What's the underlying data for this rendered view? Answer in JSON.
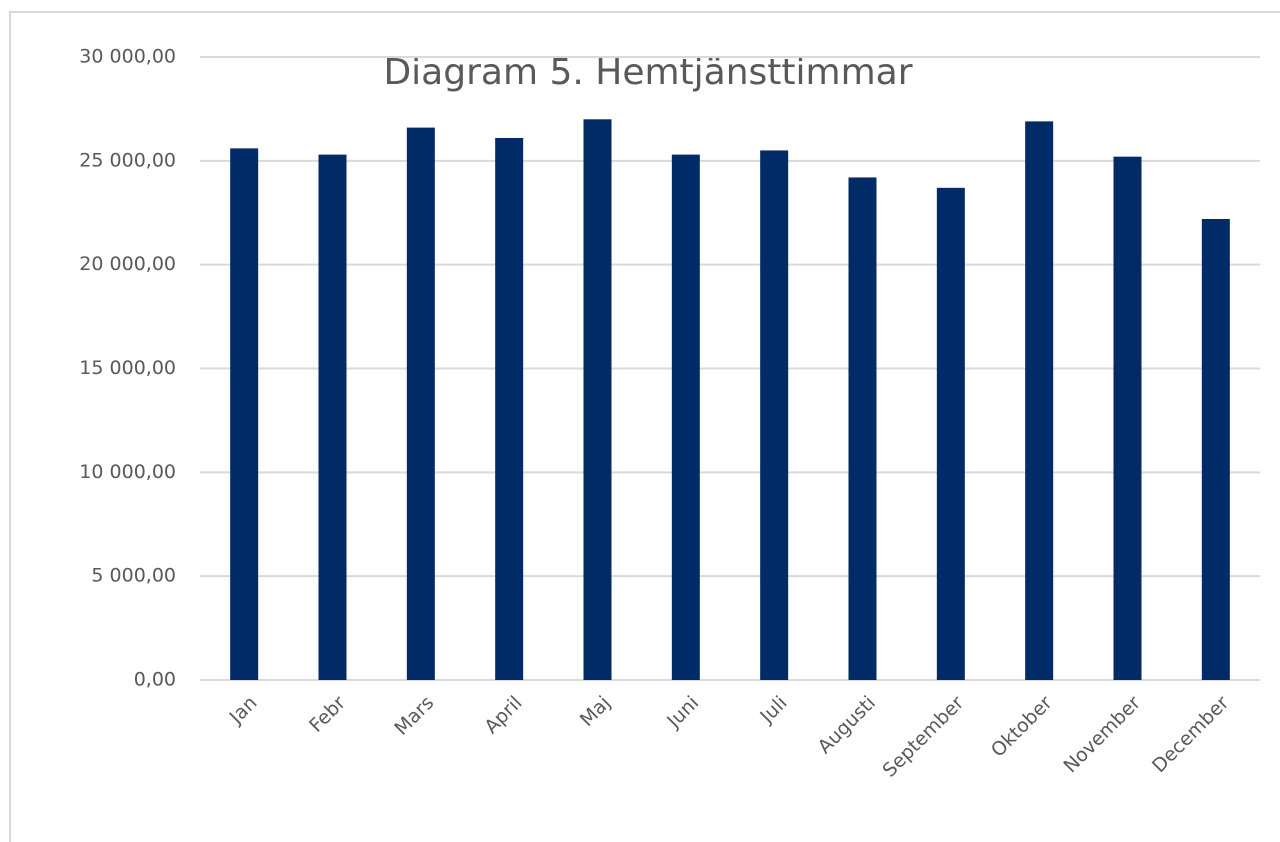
{
  "chart_data": {
    "type": "bar",
    "title": "Diagram 5. Hemtjänsttimmar",
    "categories": [
      "Jan",
      "Febr",
      "Mars",
      "April",
      "Maj",
      "Juni",
      "Juli",
      "Augusti",
      "September",
      "Oktober",
      "November",
      "December"
    ],
    "values": [
      25600,
      25300,
      26600,
      26100,
      27000,
      25300,
      25500,
      24200,
      23700,
      26900,
      25200,
      22200
    ],
    "color": "#002b66",
    "ylim": [
      0,
      30000
    ],
    "yticks": [
      {
        "value": 0,
        "label": "0,00"
      },
      {
        "value": 5000,
        "label": "5 000,00"
      },
      {
        "value": 10000,
        "label": "10 000,00"
      },
      {
        "value": 15000,
        "label": "15 000,00"
      },
      {
        "value": 20000,
        "label": "20 000,00"
      },
      {
        "value": 25000,
        "label": "25 000,00"
      },
      {
        "value": 30000,
        "label": "30 000,00"
      }
    ],
    "grid": true
  }
}
